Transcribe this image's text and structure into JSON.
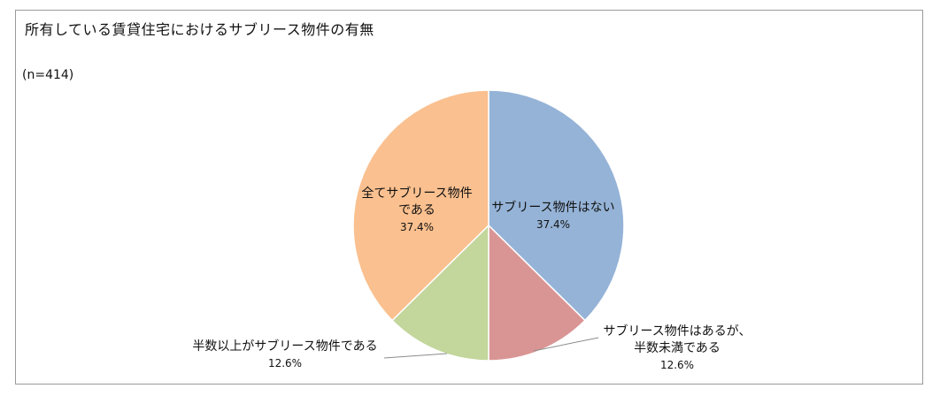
{
  "title": "所有している賃貸住宅におけるサブリース物件の有無",
  "sample_size": "(n=414)",
  "chart_data": {
    "type": "pie",
    "title": "所有している賃貸住宅におけるサブリース物件の有無",
    "note": "(n=414)",
    "slices": [
      {
        "label_lines": [
          "サブリース物件はない"
        ],
        "pct_label": "37.4%",
        "value": 37.4,
        "color": "#95b3d7"
      },
      {
        "label_lines": [
          "サブリース物件はあるが、",
          "半数未満である"
        ],
        "pct_label": "12.6%",
        "value": 12.6,
        "color": "#d99594"
      },
      {
        "label_lines": [
          "半数以上がサブリース物件である"
        ],
        "pct_label": "12.6%",
        "value": 12.6,
        "color": "#c3d69b"
      },
      {
        "label_lines": [
          "全てサブリース物件",
          "である"
        ],
        "pct_label": "37.4%",
        "value": 37.4,
        "color": "#fac08f"
      }
    ]
  }
}
